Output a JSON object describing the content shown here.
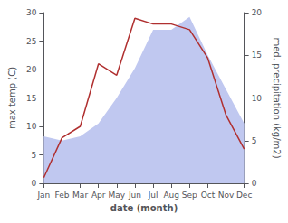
{
  "chart_data": {
    "type": "line",
    "xlabel": "date (month)",
    "ylabel": "max temp (C)",
    "y2label": "med. precipitation (kg/m2)",
    "categories": [
      "Jan",
      "Feb",
      "Mar",
      "Apr",
      "May",
      "Jun",
      "Jul",
      "Aug",
      "Sep",
      "Oct",
      "Nov",
      "Dec"
    ],
    "series": [
      {
        "type": "area",
        "axis": "y2",
        "color": "#c0c8f0",
        "values": [
          5.5,
          5.0,
          5.5,
          7.0,
          10.0,
          13.5,
          18.0,
          18.0,
          19.5,
          15.0,
          11.0,
          7.0
        ]
      },
      {
        "type": "line",
        "color": "#b03030",
        "values": [
          1,
          8,
          10,
          21,
          19,
          29,
          28,
          28,
          27,
          22,
          12,
          6
        ]
      }
    ],
    "ylim": [
      0,
      30
    ],
    "yticks": [
      0,
      5,
      10,
      15,
      20,
      25,
      30
    ],
    "y2lim": [
      0,
      20
    ],
    "y2ticks": [
      0,
      5,
      10,
      15,
      20
    ],
    "grid": false
  }
}
